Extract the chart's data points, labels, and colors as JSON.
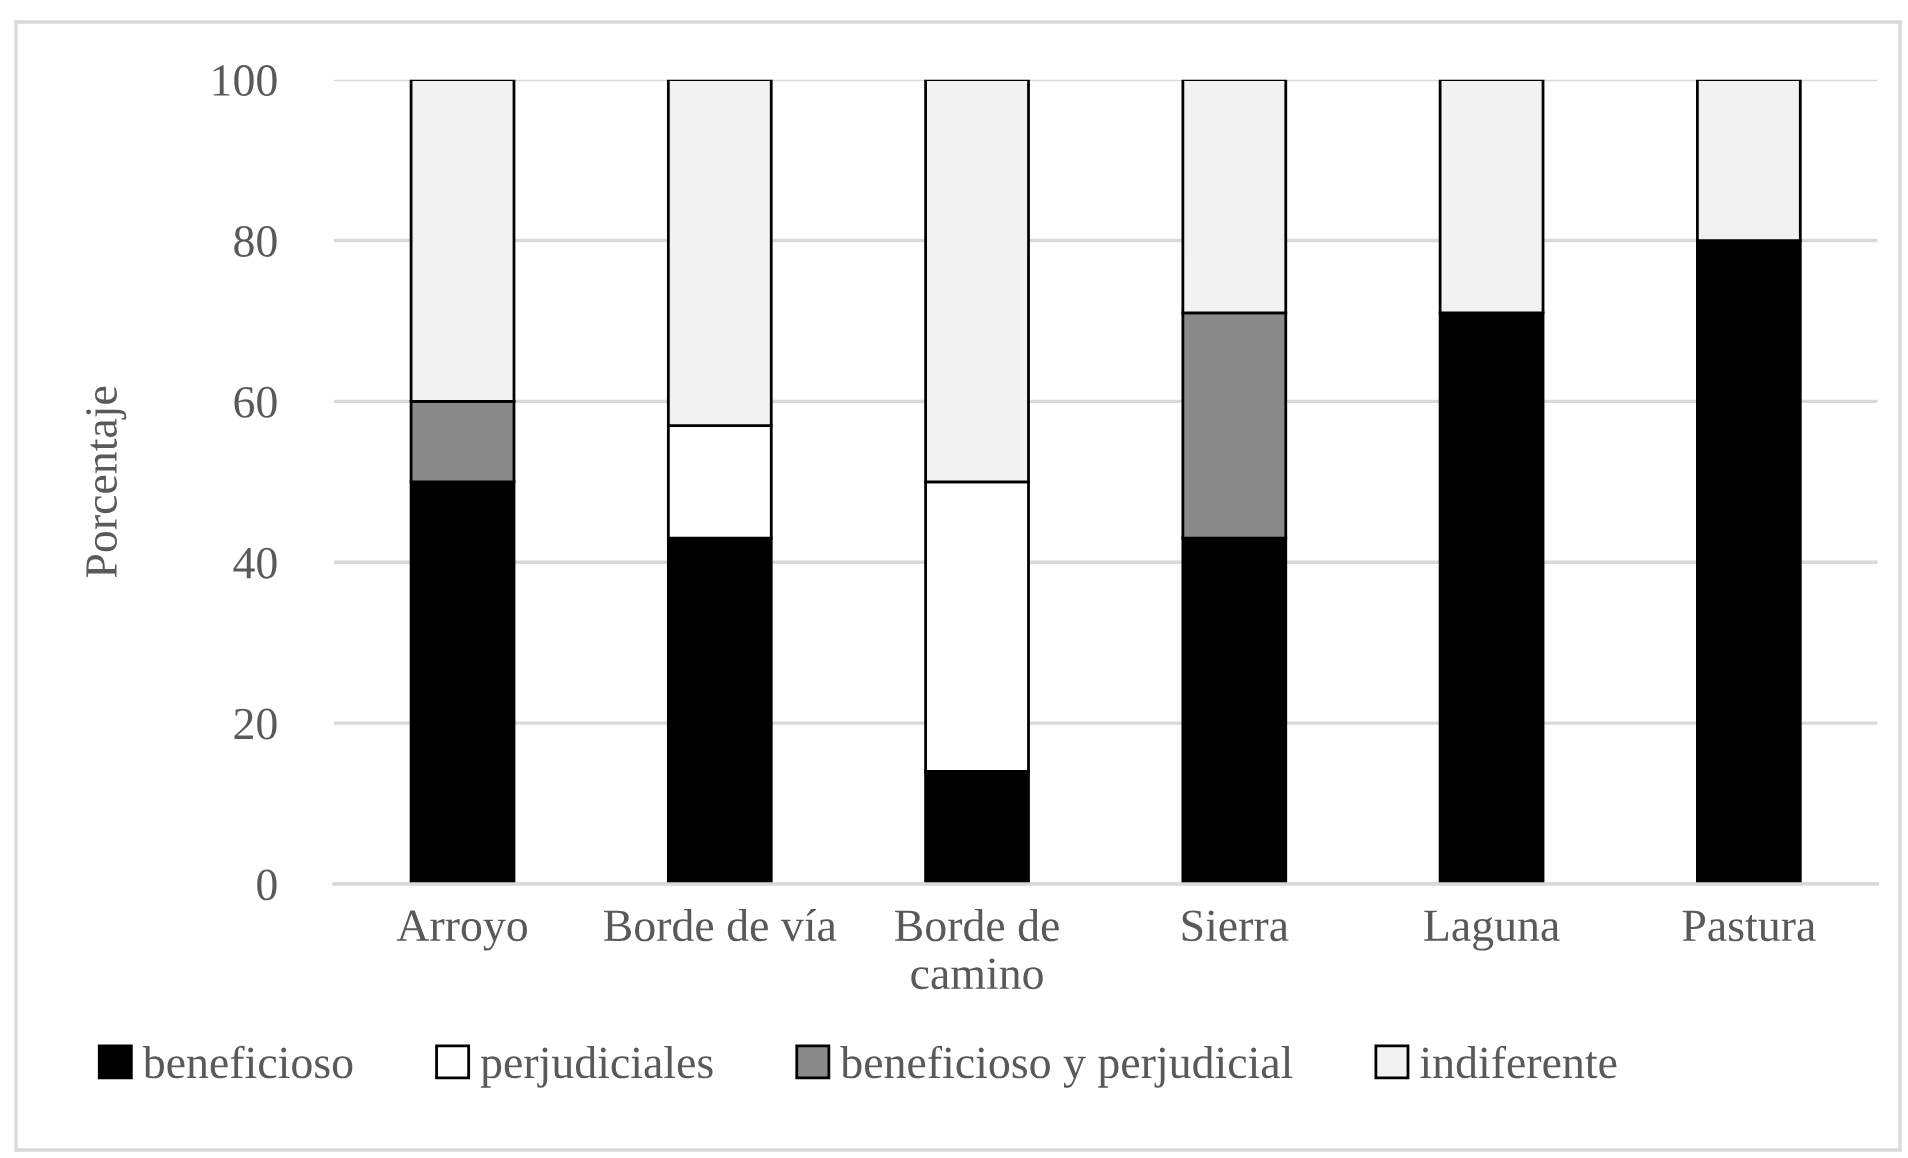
{
  "chart_data": {
    "type": "bar",
    "stacked": true,
    "ylabel": "Porcentaje",
    "categories": [
      "Arroyo",
      "Borde de vía",
      "Borde de\ncamino",
      "Sierra",
      "Laguna",
      "Pastura"
    ],
    "series": [
      {
        "name": "beneficioso",
        "color": "#000000",
        "values": [
          50,
          43,
          14,
          43,
          71,
          80
        ]
      },
      {
        "name": "perjudiciales",
        "color": "#ffffff",
        "values": [
          null,
          14,
          36,
          null,
          null,
          null
        ]
      },
      {
        "name": "beneficioso y perjudicial",
        "color": "#8a8a8a",
        "values": [
          10,
          null,
          null,
          28,
          null,
          null
        ]
      },
      {
        "name": "indiferente",
        "color": "#f2f2f2",
        "values": [
          40,
          43,
          50,
          29,
          29,
          20
        ]
      }
    ],
    "ylim": [
      0,
      100
    ],
    "yticks": [
      0,
      20,
      40,
      60,
      80,
      100
    ],
    "grid": "y",
    "legend": "bottom"
  }
}
